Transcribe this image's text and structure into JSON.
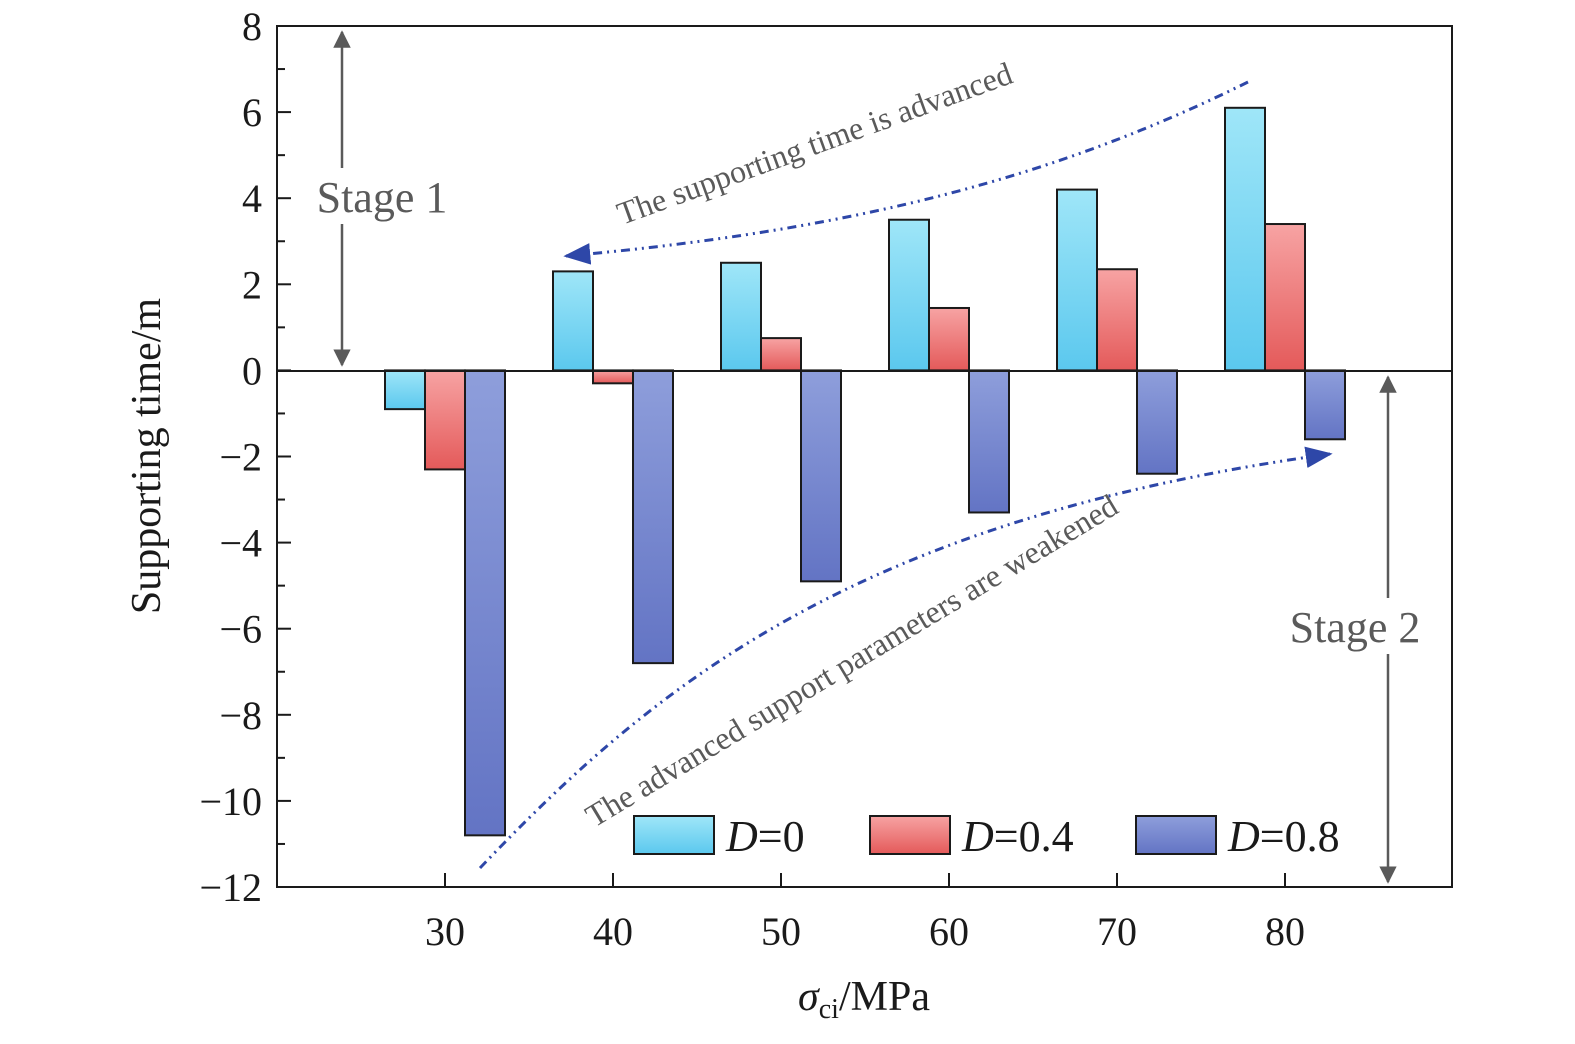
{
  "chart_data": {
    "type": "bar",
    "title": "",
    "xlabel_symbol": "σ",
    "xlabel_subscript": "ci",
    "xlabel_unit": "/MPa",
    "ylabel": "Supporting time/m",
    "categories": [
      "30",
      "40",
      "50",
      "60",
      "70",
      "80"
    ],
    "series": [
      {
        "name_var": "D",
        "name_rest": "=0",
        "values": [
          -0.9,
          2.3,
          2.5,
          3.5,
          4.2,
          6.1
        ]
      },
      {
        "name_var": "D",
        "name_rest": "=0.4",
        "values": [
          -2.3,
          -0.3,
          0.75,
          1.45,
          2.35,
          3.4
        ]
      },
      {
        "name_var": "D",
        "name_rest": "=0.8",
        "values": [
          -10.8,
          -6.8,
          -4.9,
          -3.3,
          -2.4,
          -1.6
        ]
      }
    ],
    "ylim": [
      -12,
      8
    ],
    "yticks": [
      8,
      6,
      4,
      2,
      0,
      -2,
      -4,
      -6,
      -8,
      -10,
      -12
    ],
    "ytick_labels": [
      "8",
      "6",
      "4",
      "2",
      "0",
      "−2",
      "−4",
      "−6",
      "−8",
      "−10",
      "−12"
    ],
    "legend_position": "bottom-right",
    "grid": false,
    "annotations": {
      "stage1": "Stage 1",
      "stage2": "Stage 2",
      "upper_arrow": "The supporting time is advanced",
      "lower_arrow": "The advanced support parameters are weakened"
    },
    "colors": {
      "d0_top": "#9fe6f8",
      "d0_bottom": "#5bc8ee",
      "d04_top": "#f7a3a3",
      "d04_bottom": "#e45a5a",
      "d08_top": "#8e9edb",
      "d08_bottom": "#6374c4",
      "arrow": "#2e47a8",
      "stage": "#5a5a5a"
    }
  }
}
